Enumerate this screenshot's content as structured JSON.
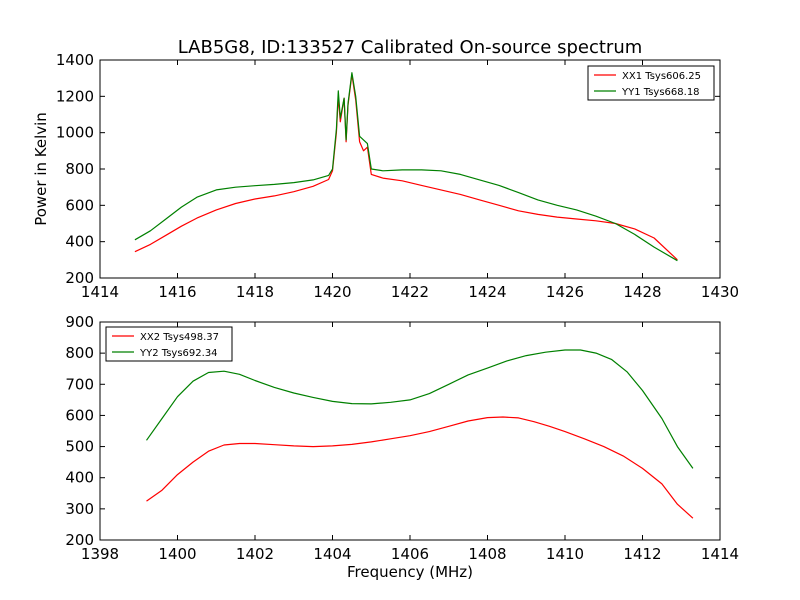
{
  "figure": {
    "title": "LAB5G8, ID:133527 Calibrated On-source spectrum",
    "ylabel": "Power in Kelvin",
    "xlabel": "Frequency (MHz)"
  },
  "chart_data": [
    {
      "type": "line",
      "title": "LAB5G8, ID:133527 Calibrated On-source spectrum",
      "xlabel": "",
      "ylabel": "Power in Kelvin",
      "xlim": [
        1414,
        1430
      ],
      "ylim": [
        200,
        1400
      ],
      "xticks": [
        1414,
        1416,
        1418,
        1420,
        1422,
        1424,
        1426,
        1428,
        1430
      ],
      "yticks": [
        200,
        400,
        600,
        800,
        1000,
        1200,
        1400
      ],
      "grid": false,
      "legend_position": "top-right",
      "series": [
        {
          "name": "XX1 Tsys606.25",
          "color": "#ff0000",
          "points": [
            [
              1414.9,
              345
            ],
            [
              1415.3,
              385
            ],
            [
              1415.7,
              435
            ],
            [
              1416.1,
              485
            ],
            [
              1416.5,
              530
            ],
            [
              1417.0,
              575
            ],
            [
              1417.5,
              610
            ],
            [
              1418.0,
              635
            ],
            [
              1418.5,
              652
            ],
            [
              1419.0,
              675
            ],
            [
              1419.5,
              705
            ],
            [
              1419.9,
              742
            ],
            [
              1420.0,
              790
            ],
            [
              1420.1,
              1000
            ],
            [
              1420.15,
              1200
            ],
            [
              1420.2,
              1060
            ],
            [
              1420.3,
              1190
            ],
            [
              1420.35,
              950
            ],
            [
              1420.4,
              1150
            ],
            [
              1420.5,
              1320
            ],
            [
              1420.6,
              1180
            ],
            [
              1420.7,
              950
            ],
            [
              1420.8,
              900
            ],
            [
              1420.9,
              920
            ],
            [
              1421.0,
              770
            ],
            [
              1421.3,
              750
            ],
            [
              1421.8,
              735
            ],
            [
              1422.3,
              710
            ],
            [
              1422.8,
              685
            ],
            [
              1423.3,
              660
            ],
            [
              1423.8,
              630
            ],
            [
              1424.3,
              600
            ],
            [
              1424.8,
              570
            ],
            [
              1425.3,
              550
            ],
            [
              1425.8,
              535
            ],
            [
              1426.3,
              525
            ],
            [
              1426.8,
              515
            ],
            [
              1427.3,
              500
            ],
            [
              1427.8,
              470
            ],
            [
              1428.3,
              420
            ],
            [
              1428.9,
              300
            ]
          ]
        },
        {
          "name": "YY1 Tsys668.18",
          "color": "#008000",
          "points": [
            [
              1414.9,
              410
            ],
            [
              1415.3,
              460
            ],
            [
              1415.7,
              525
            ],
            [
              1416.1,
              590
            ],
            [
              1416.5,
              645
            ],
            [
              1417.0,
              685
            ],
            [
              1417.5,
              700
            ],
            [
              1418.0,
              708
            ],
            [
              1418.5,
              715
            ],
            [
              1419.0,
              725
            ],
            [
              1419.5,
              740
            ],
            [
              1419.9,
              765
            ],
            [
              1420.0,
              800
            ],
            [
              1420.1,
              1020
            ],
            [
              1420.15,
              1230
            ],
            [
              1420.2,
              1080
            ],
            [
              1420.3,
              1190
            ],
            [
              1420.35,
              960
            ],
            [
              1420.4,
              1160
            ],
            [
              1420.5,
              1330
            ],
            [
              1420.6,
              1200
            ],
            [
              1420.7,
              980
            ],
            [
              1420.8,
              960
            ],
            [
              1420.9,
              940
            ],
            [
              1421.0,
              800
            ],
            [
              1421.3,
              790
            ],
            [
              1421.8,
              795
            ],
            [
              1422.3,
              795
            ],
            [
              1422.8,
              790
            ],
            [
              1423.3,
              770
            ],
            [
              1423.8,
              740
            ],
            [
              1424.3,
              710
            ],
            [
              1424.8,
              670
            ],
            [
              1425.3,
              630
            ],
            [
              1425.8,
              600
            ],
            [
              1426.3,
              575
            ],
            [
              1426.8,
              540
            ],
            [
              1427.3,
              500
            ],
            [
              1427.8,
              440
            ],
            [
              1428.3,
              370
            ],
            [
              1428.9,
              295
            ]
          ]
        }
      ]
    },
    {
      "type": "line",
      "title": "",
      "xlabel": "Frequency (MHz)",
      "ylabel": "",
      "xlim": [
        1398,
        1414
      ],
      "ylim": [
        200,
        900
      ],
      "xticks": [
        1398,
        1400,
        1402,
        1404,
        1406,
        1408,
        1410,
        1412,
        1414
      ],
      "yticks": [
        200,
        300,
        400,
        500,
        600,
        700,
        800,
        900
      ],
      "grid": false,
      "legend_position": "top-left",
      "series": [
        {
          "name": "XX2 Tsys498.37",
          "color": "#ff0000",
          "points": [
            [
              1399.2,
              325
            ],
            [
              1399.6,
              360
            ],
            [
              1400.0,
              410
            ],
            [
              1400.4,
              450
            ],
            [
              1400.8,
              485
            ],
            [
              1401.2,
              505
            ],
            [
              1401.6,
              510
            ],
            [
              1402.0,
              510
            ],
            [
              1402.5,
              506
            ],
            [
              1403.0,
              502
            ],
            [
              1403.5,
              500
            ],
            [
              1404.0,
              502
            ],
            [
              1404.5,
              507
            ],
            [
              1405.0,
              515
            ],
            [
              1405.5,
              525
            ],
            [
              1406.0,
              535
            ],
            [
              1406.5,
              548
            ],
            [
              1407.0,
              565
            ],
            [
              1407.5,
              582
            ],
            [
              1408.0,
              593
            ],
            [
              1408.4,
              595
            ],
            [
              1408.8,
              592
            ],
            [
              1409.2,
              580
            ],
            [
              1409.6,
              565
            ],
            [
              1410.0,
              548
            ],
            [
              1410.5,
              525
            ],
            [
              1411.0,
              500
            ],
            [
              1411.5,
              470
            ],
            [
              1412.0,
              430
            ],
            [
              1412.5,
              380
            ],
            [
              1412.9,
              315
            ],
            [
              1413.3,
              270
            ]
          ]
        },
        {
          "name": "YY2 Tsys692.34",
          "color": "#008000",
          "points": [
            [
              1399.2,
              520
            ],
            [
              1399.6,
              590
            ],
            [
              1400.0,
              660
            ],
            [
              1400.4,
              710
            ],
            [
              1400.8,
              738
            ],
            [
              1401.2,
              742
            ],
            [
              1401.6,
              732
            ],
            [
              1402.0,
              712
            ],
            [
              1402.5,
              690
            ],
            [
              1403.0,
              672
            ],
            [
              1403.5,
              658
            ],
            [
              1404.0,
              645
            ],
            [
              1404.5,
              638
            ],
            [
              1405.0,
              637
            ],
            [
              1405.5,
              642
            ],
            [
              1406.0,
              650
            ],
            [
              1406.5,
              670
            ],
            [
              1407.0,
              700
            ],
            [
              1407.5,
              730
            ],
            [
              1408.0,
              752
            ],
            [
              1408.5,
              775
            ],
            [
              1409.0,
              792
            ],
            [
              1409.5,
              803
            ],
            [
              1410.0,
              810
            ],
            [
              1410.4,
              810
            ],
            [
              1410.8,
              800
            ],
            [
              1411.2,
              780
            ],
            [
              1411.6,
              740
            ],
            [
              1412.0,
              680
            ],
            [
              1412.5,
              590
            ],
            [
              1412.9,
              500
            ],
            [
              1413.3,
              430
            ]
          ]
        }
      ]
    }
  ]
}
